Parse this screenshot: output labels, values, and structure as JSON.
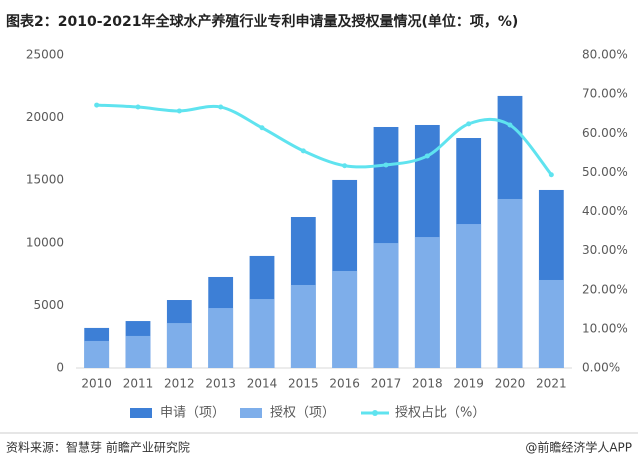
{
  "chart_data": {
    "type": "bar",
    "title": "图表2：2010-2021年全球水产养殖行业专利申请量及授权量情况(单位：项，%)",
    "categories": [
      "2010",
      "2011",
      "2012",
      "2013",
      "2014",
      "2015",
      "2016",
      "2017",
      "2018",
      "2019",
      "2020",
      "2021"
    ],
    "series": [
      {
        "name": "申请（项）",
        "color": "#3d7fd6",
        "values": [
          3200,
          3750,
          5430,
          7270,
          8950,
          12060,
          15020,
          19250,
          19410,
          18370,
          21730,
          14220
        ]
      },
      {
        "name": "授权（项）",
        "color": "#7eaeea",
        "values": [
          2160,
          2560,
          3590,
          4790,
          5510,
          6630,
          7750,
          9980,
          10460,
          11500,
          13500,
          7030
        ]
      },
      {
        "name": "授权占比（%）",
        "color": "#5fe3ef",
        "axis": "y2",
        "values": [
          67.2,
          66.7,
          65.7,
          66.7,
          61.4,
          55.5,
          51.7,
          51.9,
          54.2,
          62.4,
          62.1,
          49.4
        ]
      }
    ],
    "ylim": [
      0,
      25000
    ],
    "yticks": [
      0,
      5000,
      10000,
      15000,
      20000,
      25000
    ],
    "y2lim": [
      0,
      80
    ],
    "y2ticks": [
      {
        "value": 0,
        "label": "0.00%"
      },
      {
        "value": 10,
        "label": "10.00%"
      },
      {
        "value": 20,
        "label": "20.00%"
      },
      {
        "value": 30,
        "label": "30.00%"
      },
      {
        "value": 40,
        "label": "40.00%"
      },
      {
        "value": 50,
        "label": "50.00%"
      },
      {
        "value": 60,
        "label": "60.00%"
      },
      {
        "value": 70,
        "label": "70.00%"
      },
      {
        "value": 80,
        "label": "80.00%"
      }
    ],
    "legend": "bottom",
    "source": "资料来源：智慧芽 前瞻产业研究院",
    "credit": "@前瞻经济学人APP"
  }
}
